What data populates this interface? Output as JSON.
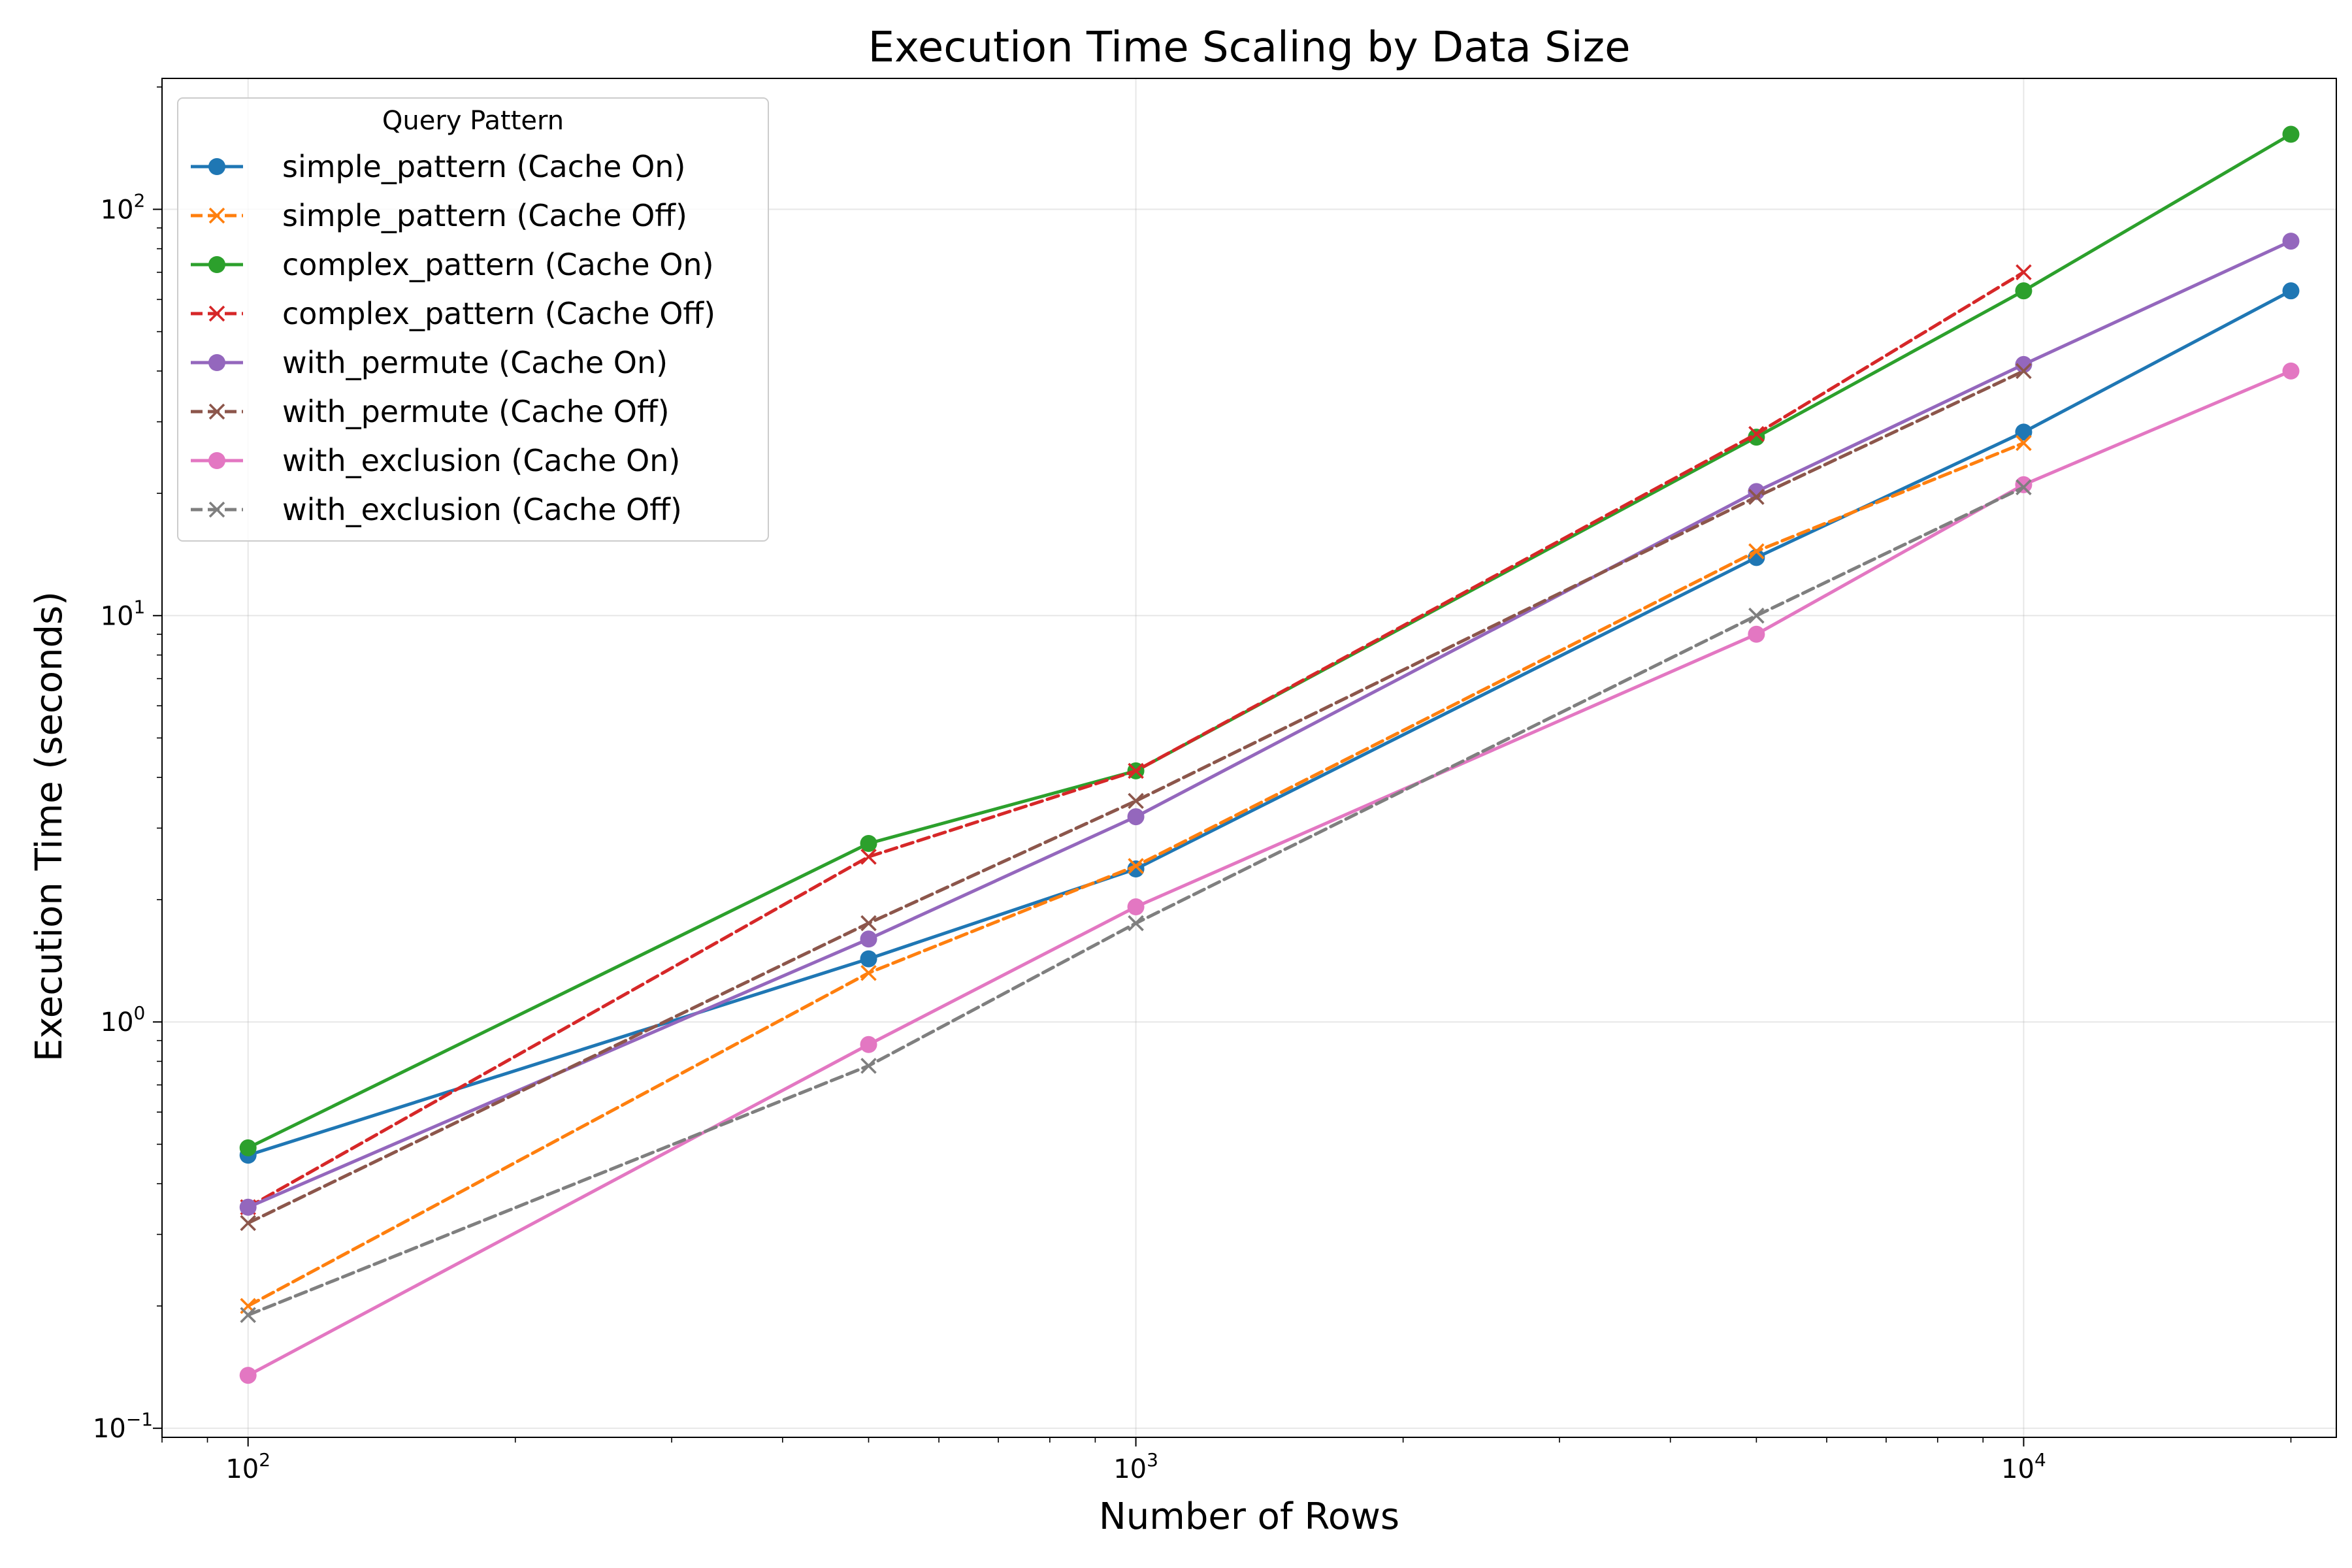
{
  "chart_data": {
    "type": "line",
    "title": "Execution Time Scaling by Data Size",
    "xlabel": "Number of Rows",
    "ylabel": "Execution Time (seconds)",
    "xscale": "log",
    "yscale": "log",
    "xlim": [
      80,
      22500
    ],
    "ylim": [
      0.095,
      210
    ],
    "grid": true,
    "legend": {
      "title": "Query Pattern",
      "position": "top-left"
    },
    "x_ticks": [
      {
        "value": 100,
        "base": "10",
        "exp": "2"
      },
      {
        "value": 1000,
        "base": "10",
        "exp": "3"
      },
      {
        "value": 10000,
        "base": "10",
        "exp": "4"
      }
    ],
    "y_ticks": [
      {
        "value": 0.1,
        "base": "10",
        "exp": "−1"
      },
      {
        "value": 1,
        "base": "10",
        "exp": "0"
      },
      {
        "value": 10,
        "base": "10",
        "exp": "1"
      },
      {
        "value": 100,
        "base": "10",
        "exp": "2"
      }
    ],
    "series": [
      {
        "name": "simple_pattern (Cache On)",
        "color": "#1f77b4",
        "dash": false,
        "marker": "circle",
        "x": [
          100,
          500,
          1000,
          5000,
          10000,
          20000
        ],
        "values": [
          0.47,
          1.43,
          2.38,
          13.9,
          28.3,
          63.0
        ]
      },
      {
        "name": "simple_pattern (Cache Off)",
        "color": "#ff7f0e",
        "dash": true,
        "marker": "x",
        "x": [
          100,
          500,
          1000,
          5000,
          10000
        ],
        "values": [
          0.2,
          1.32,
          2.42,
          14.4,
          26.6
        ]
      },
      {
        "name": "complex_pattern (Cache On)",
        "color": "#2ca02c",
        "dash": false,
        "marker": "circle",
        "x": [
          100,
          500,
          1000,
          5000,
          10000,
          20000
        ],
        "values": [
          0.49,
          2.75,
          4.15,
          27.5,
          63.0,
          153.0
        ]
      },
      {
        "name": "complex_pattern (Cache Off)",
        "color": "#d62728",
        "dash": true,
        "marker": "x",
        "x": [
          100,
          500,
          1000,
          5000,
          10000
        ],
        "values": [
          0.35,
          2.55,
          4.15,
          28.0,
          70.0
        ]
      },
      {
        "name": "with_permute (Cache On)",
        "color": "#9467bd",
        "dash": false,
        "marker": "circle",
        "x": [
          100,
          500,
          1000,
          5000,
          10000,
          20000
        ],
        "values": [
          0.35,
          1.6,
          3.2,
          20.2,
          41.5,
          83.5
        ]
      },
      {
        "name": "with_permute (Cache Off)",
        "color": "#8c564b",
        "dash": true,
        "marker": "x",
        "x": [
          100,
          500,
          1000,
          5000,
          10000
        ],
        "values": [
          0.32,
          1.75,
          3.5,
          19.6,
          40.0
        ]
      },
      {
        "name": "with_exclusion (Cache On)",
        "color": "#e377c2",
        "dash": false,
        "marker": "circle",
        "x": [
          100,
          500,
          1000,
          5000,
          10000,
          20000
        ],
        "values": [
          0.135,
          0.88,
          1.92,
          9.0,
          21.0,
          40.0
        ]
      },
      {
        "name": "with_exclusion (Cache Off)",
        "color": "#7f7f7f",
        "dash": true,
        "marker": "x",
        "x": [
          100,
          500,
          1000,
          5000,
          10000
        ],
        "values": [
          0.19,
          0.78,
          1.75,
          10.0,
          20.7
        ]
      }
    ]
  }
}
